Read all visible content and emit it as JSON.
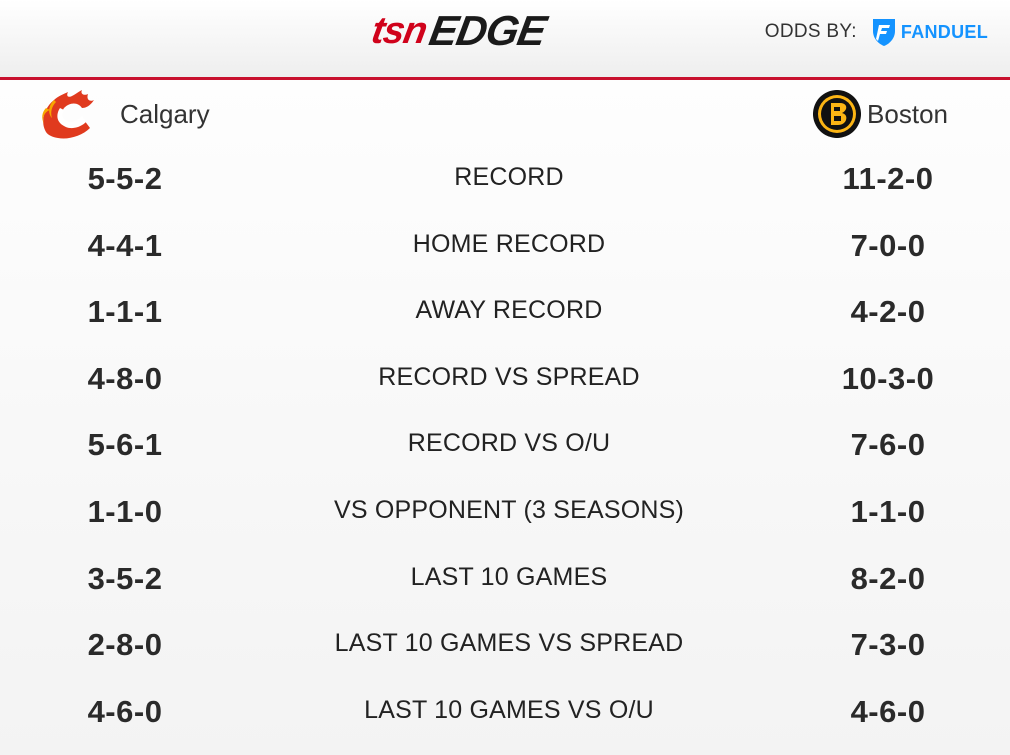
{
  "header": {
    "brand_tsn": "tsn",
    "brand_edge": "EDGE",
    "odds_label": "ODDS BY:",
    "sponsor": "FANDUEL",
    "accent": "#c8102e"
  },
  "teams": {
    "away": {
      "name": "Calgary",
      "logo": "calgary-flames-logo"
    },
    "home": {
      "name": "Boston",
      "logo": "boston-bruins-logo"
    }
  },
  "stats": [
    {
      "label": "RECORD",
      "away": "5-5-2",
      "home": "11-2-0"
    },
    {
      "label": "HOME RECORD",
      "away": "4-4-1",
      "home": "7-0-0"
    },
    {
      "label": "AWAY RECORD",
      "away": "1-1-1",
      "home": "4-2-0"
    },
    {
      "label": "RECORD VS SPREAD",
      "away": "4-8-0",
      "home": "10-3-0"
    },
    {
      "label": "RECORD VS O/U",
      "away": "5-6-1",
      "home": "7-6-0"
    },
    {
      "label": "VS OPPONENT (3 SEASONS)",
      "away": "1-1-0",
      "home": "1-1-0"
    },
    {
      "label": "LAST 10 GAMES",
      "away": "3-5-2",
      "home": "8-2-0"
    },
    {
      "label": "LAST 10 GAMES VS SPREAD",
      "away": "2-8-0",
      "home": "7-3-0"
    },
    {
      "label": "LAST 10 GAMES VS O/U",
      "away": "4-6-0",
      "home": "4-6-0"
    }
  ]
}
